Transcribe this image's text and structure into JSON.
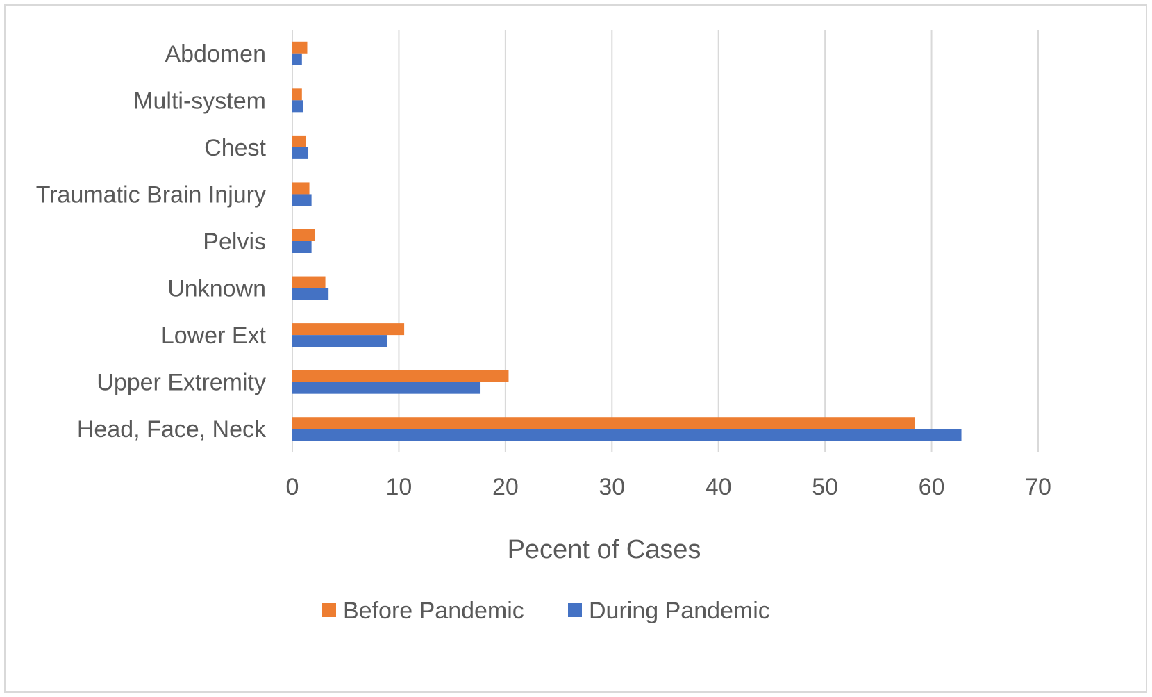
{
  "chart_data": {
    "type": "bar",
    "orientation": "horizontal",
    "categories": [
      "Head, Face, Neck",
      "Upper Extremity",
      "Lower Ext",
      "Unknown",
      "Pelvis",
      "Traumatic Brain Injury",
      "Chest",
      "Multi-system",
      "Abdomen"
    ],
    "series": [
      {
        "name": "Before Pandemic",
        "color": "#ed7d31",
        "values": [
          58.4,
          20.3,
          10.5,
          3.1,
          2.1,
          1.6,
          1.3,
          0.9,
          1.4
        ]
      },
      {
        "name": "During Pandemic",
        "color": "#4472c4",
        "values": [
          62.8,
          17.6,
          8.9,
          3.4,
          1.8,
          1.8,
          1.5,
          1.0,
          0.9
        ]
      }
    ],
    "xlabel": "Pecent of Cases",
    "ylabel": "",
    "xlim": [
      0,
      70
    ],
    "xticks": [
      "0",
      "10",
      "20",
      "30",
      "40",
      "50",
      "60",
      "70"
    ],
    "grid": true,
    "legend_position": "bottom"
  }
}
